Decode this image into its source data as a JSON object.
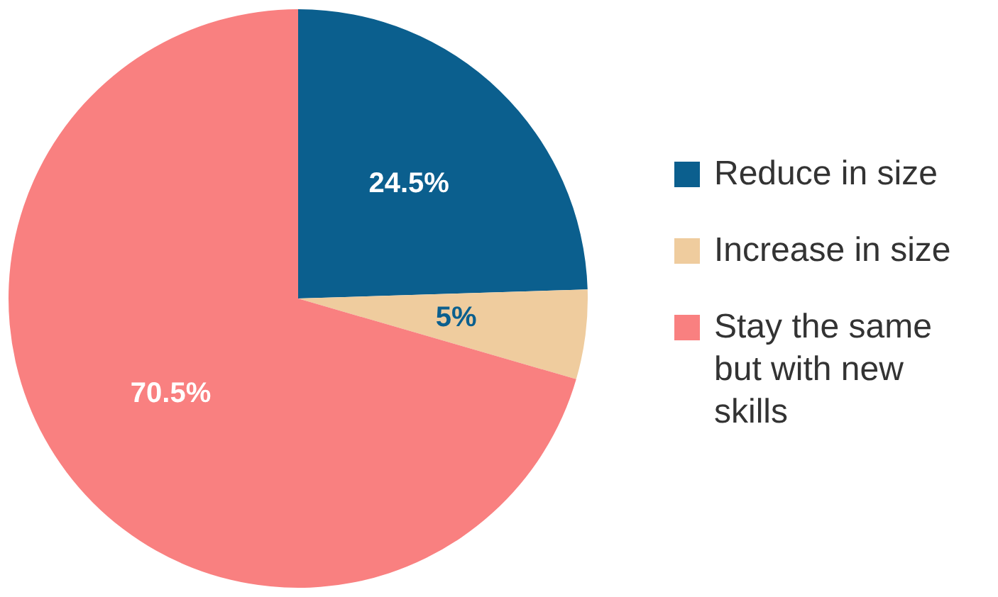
{
  "chart_data": {
    "type": "pie",
    "categories": [
      "Reduce in size",
      "Increase in size",
      "Stay the same but with new skills"
    ],
    "values": [
      24.5,
      5,
      70.5
    ],
    "colors": [
      "#0b5f8e",
      "#efcc9e",
      "#f98080"
    ],
    "value_labels": [
      "24.5%",
      "5%",
      "70.5%"
    ],
    "legend": "right"
  }
}
